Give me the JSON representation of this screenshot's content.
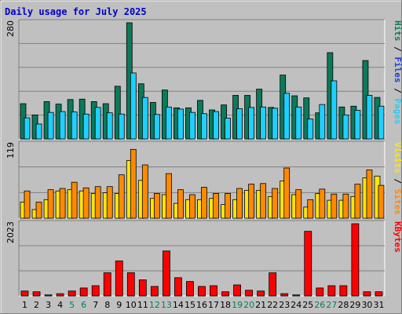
{
  "chart_data": {
    "type": "bar",
    "title": "Daily usage for July 2025",
    "days": [
      "1",
      "2",
      "3",
      "4",
      "5",
      "6",
      "7",
      "8",
      "9",
      "10",
      "11",
      "12",
      "13",
      "14",
      "15",
      "16",
      "17",
      "18",
      "19",
      "20",
      "21",
      "22",
      "23",
      "24",
      "25",
      "26",
      "27",
      "28",
      "29",
      "30",
      "31"
    ],
    "weekend_days": [
      "5",
      "6",
      "12",
      "13",
      "19",
      "20",
      "26",
      "27"
    ],
    "panels": [
      {
        "max_label": "280",
        "ylim": [
          0,
          280
        ],
        "series": [
          {
            "name": "Hits",
            "color": "#0b7a5a",
            "values": [
              85,
              58,
              90,
              84,
              95,
              96,
              90,
              85,
              127,
              280,
              133,
              88,
              118,
              75,
              75,
              93,
              70,
              82,
              105,
              105,
              120,
              76,
              154,
              104,
              99,
              63,
              208,
              77,
              79,
              189,
              100
            ]
          },
          {
            "name": "Files",
            "color": "#1a3fd6",
            "values": []
          },
          {
            "name": "Pages",
            "color": "#1fd0ff",
            "values": [
              51,
              36,
              64,
              66,
              65,
              60,
              76,
              63,
              60,
              159,
              100,
              59,
              77,
              72,
              64,
              61,
              66,
              50,
              73,
              76,
              77,
              74,
              110,
              77,
              48,
              83,
              140,
              58,
              69,
              105,
              79
            ]
          }
        ],
        "side_label": [
          {
            "text": "Pages",
            "color": "#1fd0ff"
          },
          {
            "text": " / ",
            "color": "#000000"
          },
          {
            "text": "Files",
            "color": "#1a3fd6"
          },
          {
            "text": " / ",
            "color": "#000000"
          },
          {
            "text": "Hits",
            "color": "#0b7a5a"
          }
        ]
      },
      {
        "max_label": "119",
        "ylim": [
          0,
          119
        ],
        "series": [
          {
            "name": "Visits",
            "color": "#ffe600",
            "values": [
              26,
              14,
              30,
              44,
              46,
              44,
              40,
              41,
              40,
              93,
              61,
              32,
              38,
              24,
              30,
              30,
              32,
              22,
              30,
              45,
              45,
              35,
              60,
              38,
              18,
              40,
              29,
              29,
              35,
              65,
              68
            ]
          },
          {
            "name": "Sites",
            "color": "#ff8a00",
            "values": [
              44,
              26,
              46,
              48,
              58,
              49,
              51,
              51,
              70,
              111,
              86,
              40,
              72,
              46,
              38,
              50,
              40,
              40,
              48,
              55,
              56,
              48,
              81,
              46,
              30,
              47,
              39,
              39,
              55,
              78,
              53
            ]
          }
        ],
        "side_label": [
          {
            "text": "Sites",
            "color": "#ff8a00"
          },
          {
            "text": " / ",
            "color": "#000000"
          },
          {
            "text": "Visits",
            "color": "#ffe600"
          }
        ]
      },
      {
        "max_label": "2023",
        "ylim": [
          0,
          2023
        ],
        "series": [
          {
            "name": "KBytes",
            "color": "#ff0000",
            "values": [
              138,
              117,
              30,
              64,
              138,
              223,
              287,
              650,
              982,
              652,
              451,
              267,
              1260,
              511,
              405,
              267,
              287,
              117,
              309,
              160,
              138,
              650,
              64,
              30,
              1811,
              223,
              287,
              287,
              2023,
              117,
              117
            ]
          }
        ],
        "side_label": [
          {
            "text": "KBytes",
            "color": "#ff0000"
          }
        ]
      }
    ],
    "colors": {
      "background": "#c0c0c0",
      "gridline": "#808080",
      "weekday_label": "#000000",
      "weekend_label": "#00805a"
    }
  }
}
